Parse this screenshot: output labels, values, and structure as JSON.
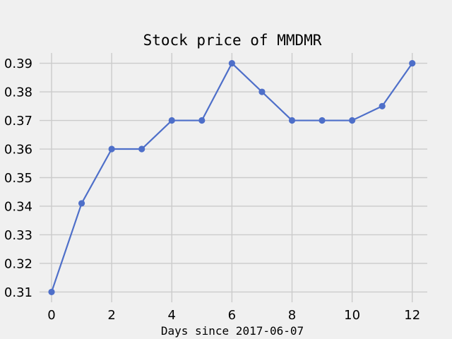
{
  "chart_data": {
    "type": "line",
    "title": "Stock price of MMDMR",
    "xlabel": "Days since 2017-06-07",
    "ylabel": "",
    "x": [
      0,
      1,
      2,
      3,
      4,
      5,
      6,
      7,
      8,
      9,
      10,
      11,
      12
    ],
    "series": [
      {
        "values": [
          0.31,
          0.341,
          0.36,
          0.36,
          0.37,
          0.37,
          0.39,
          0.38,
          0.37,
          0.37,
          0.37,
          0.375,
          0.39
        ]
      }
    ],
    "x_ticks": [
      "0",
      "2",
      "4",
      "6",
      "8",
      "10",
      "12"
    ],
    "y_ticks": [
      "0.31",
      "0.32",
      "0.33",
      "0.34",
      "0.35",
      "0.36",
      "0.37",
      "0.38",
      "0.39"
    ],
    "xlim": [
      -0.4,
      12.5
    ],
    "ylim": [
      0.3064,
      0.3936
    ],
    "grid": true,
    "legend": "none",
    "colors": {
      "series": "#4e6fc9",
      "background": "#f0f0f0",
      "grid": "#cbcbcb"
    }
  }
}
